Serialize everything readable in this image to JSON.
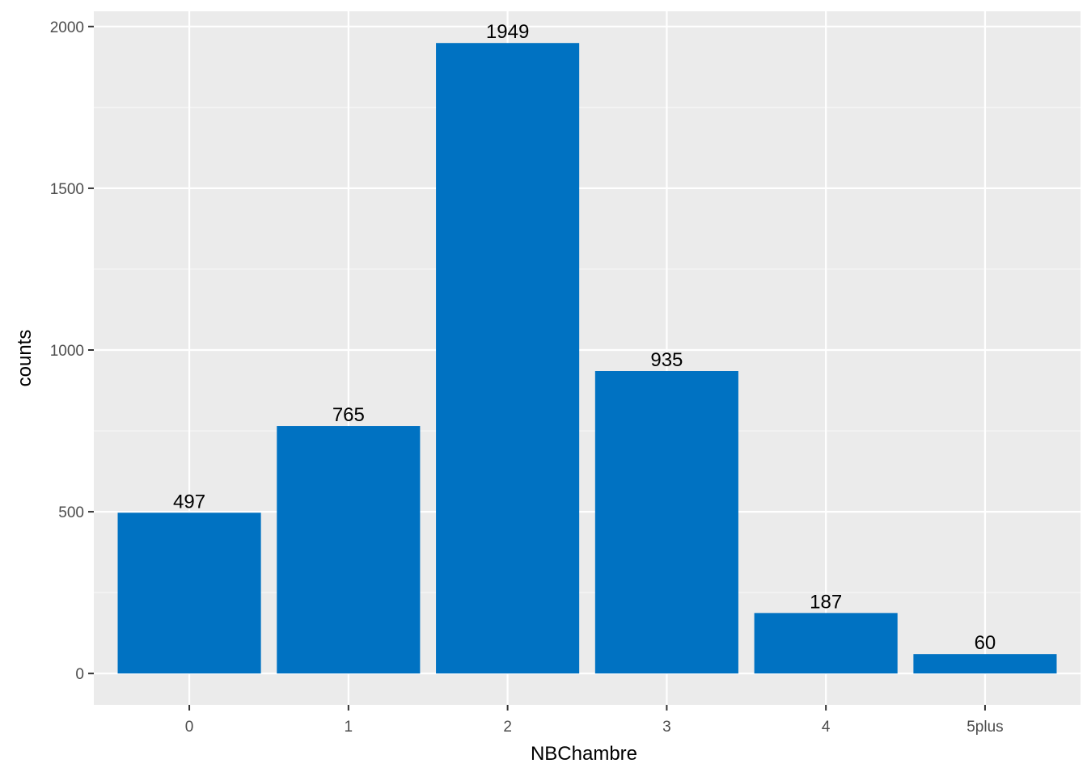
{
  "chart_data": {
    "type": "bar",
    "categories": [
      "0",
      "1",
      "2",
      "3",
      "4",
      "5plus"
    ],
    "values": [
      497,
      765,
      1949,
      935,
      187,
      60
    ],
    "data_labels": [
      "497",
      "765",
      "1949",
      "935",
      "187",
      "60"
    ],
    "title": "",
    "xlabel": "NBChambre",
    "ylabel": "counts",
    "ylim": [
      -97,
      2047
    ],
    "yticks": [
      0,
      500,
      1000,
      1500,
      2000
    ],
    "ytick_labels": [
      "0",
      "500",
      "1000",
      "1500",
      "2000"
    ],
    "grid": true,
    "legend": "none",
    "colors": {
      "bar": "#0072C2",
      "panel_background": "#EBEBEB",
      "grid_major": "#FFFFFF",
      "grid_minor": "#F7F7F7",
      "tick_text": "#4D4D4D",
      "axis_title": "#000000"
    }
  }
}
